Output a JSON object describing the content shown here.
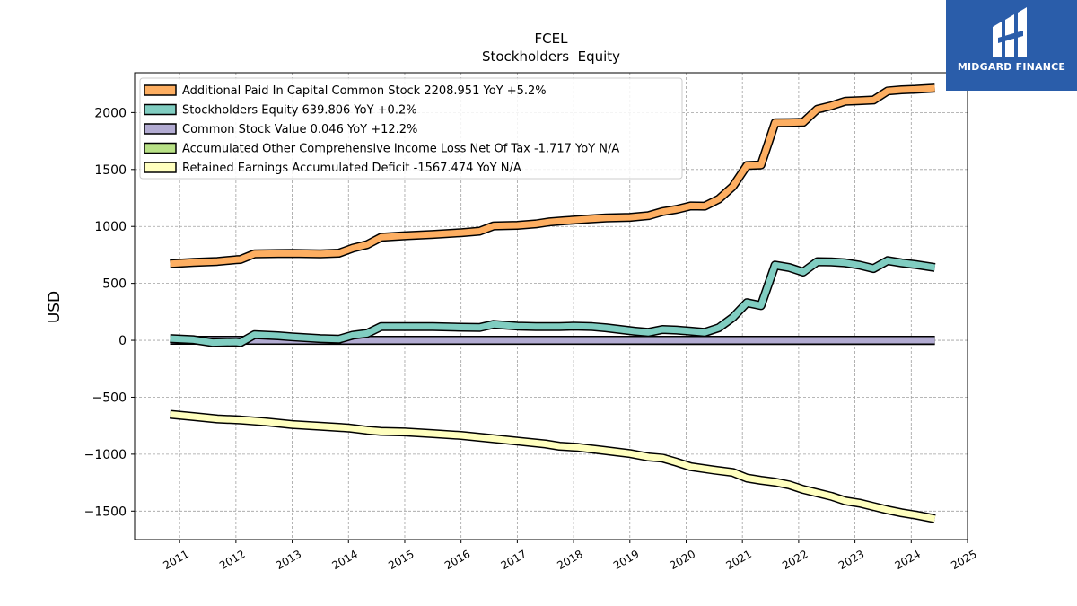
{
  "chart_data": {
    "type": "line",
    "title": "FCEL",
    "subtitle": "Stockholders  Equity",
    "ylabel": "USD",
    "xlabel": "",
    "ylim": [
      -1750,
      2350
    ],
    "xlim": [
      2010.2,
      2025.0
    ],
    "yticks": [
      -1500,
      -1000,
      -500,
      0,
      500,
      1000,
      1500,
      2000
    ],
    "ytick_labels": [
      "−1500",
      "−1000",
      "−500",
      "0",
      "500",
      "1000",
      "1500",
      "2000"
    ],
    "xticks": [
      2011,
      2012,
      2013,
      2014,
      2015,
      2016,
      2017,
      2018,
      2019,
      2020,
      2021,
      2022,
      2023,
      2024,
      2025
    ],
    "xtick_labels": [
      "2011",
      "2012",
      "2013",
      "2014",
      "2015",
      "2016",
      "2017",
      "2018",
      "2019",
      "2020",
      "2021",
      "2022",
      "2023",
      "2024",
      "2025"
    ],
    "grid": true,
    "legend_position": "top-left",
    "series": [
      {
        "name": "Additional Paid In Capital Common Stock",
        "legend": "Additional Paid In Capital Common Stock  2208.951 YoY +5.2%",
        "color": "#fdae61",
        "points": [
          [
            2010.83,
            673
          ],
          [
            2011.25,
            685
          ],
          [
            2011.67,
            693
          ],
          [
            2012.0,
            708
          ],
          [
            2012.08,
            710
          ],
          [
            2012.33,
            760
          ],
          [
            2012.75,
            762
          ],
          [
            2013.0,
            764
          ],
          [
            2013.5,
            760
          ],
          [
            2013.83,
            765
          ],
          [
            2014.08,
            810
          ],
          [
            2014.33,
            840
          ],
          [
            2014.58,
            905
          ],
          [
            2015.0,
            918
          ],
          [
            2015.5,
            930
          ],
          [
            2016.0,
            945
          ],
          [
            2016.33,
            958
          ],
          [
            2016.58,
            1005
          ],
          [
            2017.0,
            1010
          ],
          [
            2017.33,
            1022
          ],
          [
            2017.58,
            1040
          ],
          [
            2017.83,
            1050
          ],
          [
            2018.25,
            1065
          ],
          [
            2018.58,
            1075
          ],
          [
            2019.0,
            1080
          ],
          [
            2019.33,
            1095
          ],
          [
            2019.58,
            1130
          ],
          [
            2019.83,
            1150
          ],
          [
            2020.08,
            1180
          ],
          [
            2020.33,
            1178
          ],
          [
            2020.58,
            1240
          ],
          [
            2020.83,
            1350
          ],
          [
            2021.08,
            1535
          ],
          [
            2021.33,
            1540
          ],
          [
            2021.58,
            1910
          ],
          [
            2021.83,
            1912
          ],
          [
            2022.08,
            1914
          ],
          [
            2022.33,
            2030
          ],
          [
            2022.58,
            2060
          ],
          [
            2022.83,
            2100
          ],
          [
            2023.08,
            2105
          ],
          [
            2023.33,
            2110
          ],
          [
            2023.58,
            2190
          ],
          [
            2023.83,
            2200
          ],
          [
            2024.08,
            2205
          ],
          [
            2024.42,
            2215
          ]
        ]
      },
      {
        "name": "Stockholders Equity",
        "legend": "Stockholders Equity  639.806 YoY +0.2%",
        "color": "#80cdc1",
        "points": [
          [
            2010.83,
            15
          ],
          [
            2011.25,
            5
          ],
          [
            2011.58,
            -20
          ],
          [
            2012.0,
            -15
          ],
          [
            2012.08,
            -20
          ],
          [
            2012.33,
            50
          ],
          [
            2012.75,
            40
          ],
          [
            2013.0,
            30
          ],
          [
            2013.5,
            15
          ],
          [
            2013.83,
            10
          ],
          [
            2014.08,
            45
          ],
          [
            2014.33,
            60
          ],
          [
            2014.58,
            120
          ],
          [
            2015.0,
            120
          ],
          [
            2015.5,
            120
          ],
          [
            2016.0,
            115
          ],
          [
            2016.33,
            112
          ],
          [
            2016.58,
            140
          ],
          [
            2017.0,
            125
          ],
          [
            2017.33,
            120
          ],
          [
            2017.75,
            120
          ],
          [
            2018.0,
            125
          ],
          [
            2018.33,
            120
          ],
          [
            2018.58,
            110
          ],
          [
            2018.83,
            95
          ],
          [
            2019.08,
            80
          ],
          [
            2019.33,
            70
          ],
          [
            2019.58,
            95
          ],
          [
            2019.83,
            90
          ],
          [
            2020.08,
            80
          ],
          [
            2020.33,
            70
          ],
          [
            2020.58,
            110
          ],
          [
            2020.83,
            200
          ],
          [
            2021.08,
            330
          ],
          [
            2021.33,
            305
          ],
          [
            2021.58,
            660
          ],
          [
            2021.83,
            640
          ],
          [
            2022.08,
            600
          ],
          [
            2022.33,
            690
          ],
          [
            2022.58,
            688
          ],
          [
            2022.83,
            680
          ],
          [
            2023.08,
            660
          ],
          [
            2023.33,
            630
          ],
          [
            2023.58,
            700
          ],
          [
            2023.83,
            680
          ],
          [
            2024.08,
            665
          ],
          [
            2024.42,
            640
          ]
        ]
      },
      {
        "name": "Common Stock Value",
        "legend": "Common Stock Value  0.046 YoY +12.2%",
        "color": "#b2abd2",
        "points": [
          [
            2010.83,
            0.02
          ],
          [
            2024.42,
            0.046
          ]
        ]
      },
      {
        "name": "Accumulated Other Comprehensive Income Loss Net Of Tax",
        "legend": "Accumulated Other Comprehensive Income Loss Net Of Tax  -1.717 YoY N/A",
        "color": "#b8e186",
        "points": [
          [
            2010.83,
            0
          ],
          [
            2024.42,
            -1.717
          ]
        ]
      },
      {
        "name": "Retained Earnings Accumulated Deficit",
        "legend": "Retained Earnings Accumulated Deficit  -1567.474 YoY N/A",
        "color": "#ffffbf",
        "points": [
          [
            2010.83,
            -650
          ],
          [
            2011.25,
            -670
          ],
          [
            2011.67,
            -690
          ],
          [
            2012.08,
            -700
          ],
          [
            2012.5,
            -715
          ],
          [
            2013.0,
            -740
          ],
          [
            2013.5,
            -755
          ],
          [
            2014.0,
            -770
          ],
          [
            2014.33,
            -790
          ],
          [
            2014.58,
            -800
          ],
          [
            2015.0,
            -805
          ],
          [
            2015.5,
            -820
          ],
          [
            2016.0,
            -835
          ],
          [
            2016.5,
            -860
          ],
          [
            2017.0,
            -885
          ],
          [
            2017.5,
            -910
          ],
          [
            2017.75,
            -930
          ],
          [
            2018.08,
            -940
          ],
          [
            2018.5,
            -965
          ],
          [
            2019.0,
            -995
          ],
          [
            2019.33,
            -1025
          ],
          [
            2019.58,
            -1035
          ],
          [
            2019.83,
            -1070
          ],
          [
            2020.08,
            -1110
          ],
          [
            2020.5,
            -1140
          ],
          [
            2020.83,
            -1160
          ],
          [
            2021.08,
            -1210
          ],
          [
            2021.33,
            -1230
          ],
          [
            2021.58,
            -1245
          ],
          [
            2021.83,
            -1270
          ],
          [
            2022.08,
            -1310
          ],
          [
            2022.33,
            -1340
          ],
          [
            2022.58,
            -1370
          ],
          [
            2022.83,
            -1410
          ],
          [
            2023.08,
            -1430
          ],
          [
            2023.33,
            -1460
          ],
          [
            2023.58,
            -1490
          ],
          [
            2023.83,
            -1515
          ],
          [
            2024.08,
            -1535
          ],
          [
            2024.42,
            -1567
          ]
        ]
      }
    ]
  },
  "logo": {
    "text": "MIDGARD FINANCE",
    "color": "#2a5daa"
  }
}
